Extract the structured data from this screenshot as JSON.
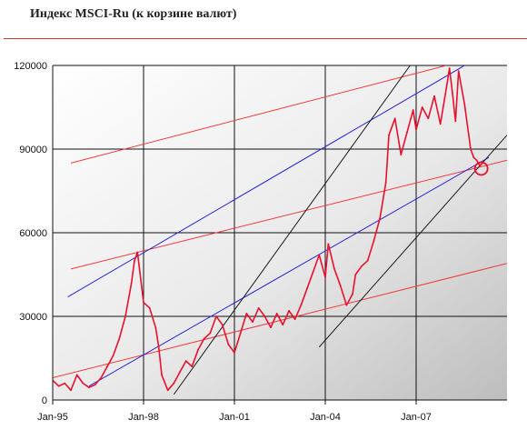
{
  "title": "Индекс MSCI-Ru (к корзине валют)",
  "chart_data": {
    "type": "line",
    "title": "Индекс MSCI-Ru (к корзине валют)",
    "xlabel": "",
    "ylabel": "",
    "x_ticks": [
      "Jan-95",
      "Jan-98",
      "Jan-01",
      "Jan-04",
      "Jan-07"
    ],
    "y_ticks": [
      0,
      30000,
      60000,
      90000,
      120000
    ],
    "y_tick_labels": [
      "0",
      "30000",
      "60000",
      "90000",
      "120000"
    ],
    "xlim": [
      1995.0,
      2010.0
    ],
    "ylim": [
      0,
      120000
    ],
    "grid": true,
    "colors": {
      "series": "#e8112d",
      "channel_red": "#f03a3a",
      "channel_blue": "#2626d8",
      "trend_black": "#1a1a1a",
      "marker": "#e8112d"
    },
    "series": [
      {
        "x": [
          1995.0,
          1995.2,
          1995.4,
          1995.6,
          1995.8,
          1996.0,
          1996.2,
          1996.4,
          1996.6,
          1996.8,
          1997.0,
          1997.2,
          1997.4,
          1997.6,
          1997.7,
          1997.8,
          1998.0,
          1998.2,
          1998.4,
          1998.5,
          1998.6,
          1998.8,
          1999.0,
          1999.2,
          1999.4,
          1999.6,
          1999.8,
          2000.0,
          2000.2,
          2000.4,
          2000.6,
          2000.8,
          2001.0,
          2001.2,
          2001.4,
          2001.6,
          2001.8,
          2002.0,
          2002.2,
          2002.4,
          2002.6,
          2002.8,
          2003.0,
          2003.2,
          2003.4,
          2003.6,
          2003.8,
          2004.0,
          2004.1,
          2004.3,
          2004.5,
          2004.7,
          2004.9,
          2005.0,
          2005.2,
          2005.4,
          2005.6,
          2005.8,
          2006.0,
          2006.1,
          2006.3,
          2006.5,
          2006.7,
          2006.9,
          2007.0,
          2007.2,
          2007.4,
          2007.6,
          2007.8,
          2008.0,
          2008.1,
          2008.2,
          2008.3,
          2008.4,
          2008.6,
          2008.8,
          2008.9,
          2009.0,
          2009.1,
          2009.2
        ],
        "values": [
          7000,
          5000,
          6000,
          3500,
          9000,
          6000,
          4500,
          5500,
          8000,
          12000,
          16000,
          22000,
          30000,
          42000,
          50000,
          53000,
          35000,
          33000,
          26000,
          19000,
          9000,
          3500,
          6000,
          10000,
          14000,
          12000,
          18000,
          22000,
          24000,
          30000,
          27000,
          20000,
          17000,
          24000,
          31000,
          28000,
          33000,
          30000,
          26000,
          31000,
          27000,
          32000,
          29000,
          34000,
          40000,
          46000,
          52000,
          44000,
          56000,
          47000,
          41000,
          34000,
          38000,
          45000,
          48000,
          50000,
          57000,
          65000,
          78000,
          95000,
          101000,
          88000,
          96000,
          104000,
          97000,
          105000,
          101000,
          109000,
          99000,
          112000,
          119000,
          110000,
          100000,
          118000,
          106000,
          90000,
          87000,
          86000,
          84000,
          85000
        ]
      }
    ],
    "marker": {
      "x": 2009.15,
      "y": 83000
    }
  }
}
